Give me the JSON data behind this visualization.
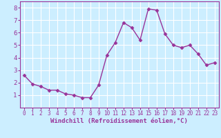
{
  "x": [
    0,
    1,
    2,
    3,
    4,
    5,
    6,
    7,
    8,
    9,
    10,
    11,
    12,
    13,
    14,
    15,
    16,
    17,
    18,
    19,
    20,
    21,
    22,
    23
  ],
  "y": [
    2.6,
    1.9,
    1.7,
    1.4,
    1.4,
    1.1,
    1.0,
    0.8,
    0.8,
    1.8,
    4.2,
    5.2,
    6.8,
    6.4,
    5.4,
    7.9,
    7.8,
    5.9,
    5.0,
    4.8,
    5.0,
    4.3,
    3.4,
    3.6
  ],
  "line_color": "#993399",
  "marker": "D",
  "marker_size": 2.5,
  "bg_color": "#cceeff",
  "grid_color": "#ffffff",
  "xlabel": "Windchill (Refroidissement éolien,°C)",
  "xlabel_color": "#993399",
  "tick_color": "#993399",
  "label_color": "#993399",
  "xlim": [
    -0.5,
    23.5
  ],
  "ylim": [
    0,
    8.5
  ],
  "yticks": [
    1,
    2,
    3,
    4,
    5,
    6,
    7,
    8
  ],
  "xticks": [
    0,
    1,
    2,
    3,
    4,
    5,
    6,
    7,
    8,
    9,
    10,
    11,
    12,
    13,
    14,
    15,
    16,
    17,
    18,
    19,
    20,
    21,
    22,
    23
  ],
  "xtick_fontsize": 5.5,
  "ytick_fontsize": 6.5,
  "xlabel_fontsize": 6.5,
  "linewidth": 1.0
}
